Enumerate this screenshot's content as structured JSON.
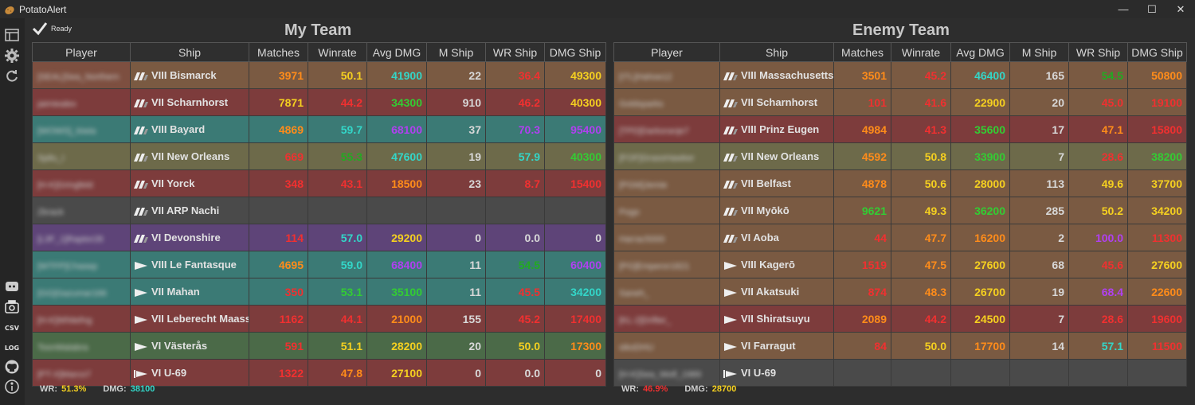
{
  "app": {
    "title": "PotatoAlert"
  },
  "status": {
    "text": "Ready"
  },
  "headers": [
    "Player",
    "Ship",
    "Matches",
    "Winrate",
    "Avg DMG",
    "M Ship",
    "WR Ship",
    "DMG Ship"
  ],
  "colors": {
    "red": "#f03030",
    "orange": "#ff8c1a",
    "yellow": "#f5d020",
    "green": "#33cc33",
    "dgreen": "#22aa22",
    "teal": "#33d6c8",
    "purple": "#b040f0",
    "white": "#d8d8d8",
    "row_brown": "#7a5a42",
    "row_red": "#7d3c3c",
    "row_teal": "#3b7a75",
    "row_olive": "#6d6a4a",
    "row_gray": "#4a4a4a",
    "row_purple": "#5e4478",
    "row_green": "#4b6a48"
  },
  "my_team": {
    "title": "My Team",
    "footer": {
      "wr_label": "WR:",
      "wr": "51.3%",
      "dmg_label": "DMG:",
      "dmg": "38100"
    },
    "rows": [
      {
        "player": "[SEAL]Sea_Northern",
        "ship": "VIII Bismarck",
        "icon": "bb",
        "bg": "#7a5a42",
        "pbg": "#7d4f40",
        "matches": "3971",
        "mc": "#ff8c1a",
        "winrate": "50.1",
        "wc": "#f5d020",
        "avg": "41900",
        "ac": "#33d6c8",
        "mship": "22",
        "wrship": "36.4",
        "wsc": "#f03030",
        "dmgship": "49300",
        "dsc": "#f5d020"
      },
      {
        "player": "jaimiealex",
        "ship": "VII Scharnhorst",
        "icon": "bb",
        "bg": "#7d3c3c",
        "pbg": "#7d3c3c",
        "matches": "7871",
        "mc": "#f5d020",
        "winrate": "44.2",
        "wc": "#f03030",
        "avg": "34300",
        "ac": "#33cc33",
        "mship": "910",
        "wrship": "46.2",
        "wsc": "#f03030",
        "dmgship": "40300",
        "dsc": "#f5d020"
      },
      {
        "player": "[WOWS]_kiwia",
        "ship": "VIII Bayard",
        "icon": "bb",
        "bg": "#3b7a75",
        "pbg": "#3b7a75",
        "matches": "4869",
        "mc": "#ff8c1a",
        "winrate": "59.7",
        "wc": "#33d6c8",
        "avg": "68100",
        "ac": "#b040f0",
        "mship": "37",
        "wrship": "70.3",
        "wsc": "#b040f0",
        "dmgship": "95400",
        "dsc": "#b040f0"
      },
      {
        "player": "Spilu_I",
        "ship": "VII New Orleans",
        "icon": "bb",
        "bg": "#6d6a4a",
        "pbg": "#6d6a4a",
        "matches": "669",
        "mc": "#f03030",
        "winrate": "55.3",
        "wc": "#22aa22",
        "avg": "47600",
        "ac": "#33d6c8",
        "mship": "19",
        "wrship": "57.9",
        "wsc": "#33d6c8",
        "dmgship": "40300",
        "dsc": "#33cc33"
      },
      {
        "player": "[H-K]Gringfeld",
        "ship": "VII Yorck",
        "icon": "bb",
        "bg": "#7d3c3c",
        "pbg": "#7d3c3c",
        "matches": "348",
        "mc": "#f03030",
        "winrate": "43.1",
        "wc": "#f03030",
        "avg": "18500",
        "ac": "#ff8c1a",
        "mship": "23",
        "wrship": "8.7",
        "wsc": "#f03030",
        "dmgship": "15400",
        "dsc": "#f03030"
      },
      {
        "player": "Zkrack",
        "ship": "VII ARP Nachi",
        "icon": "bb",
        "bg": "#4a4a4a",
        "pbg": "#4a4a4a",
        "matches": "",
        "mc": "#d8d8d8",
        "winrate": "",
        "wc": "#d8d8d8",
        "avg": "",
        "ac": "#d8d8d8",
        "mship": "",
        "wrship": "",
        "wsc": "#d8d8d8",
        "dmgship": "",
        "dsc": "#d8d8d8"
      },
      {
        "player": "[L3F_1]Raptor28",
        "ship": "VI Devonshire",
        "icon": "bb",
        "bg": "#5e4478",
        "pbg": "#5e4478",
        "matches": "114",
        "mc": "#f03030",
        "winrate": "57.0",
        "wc": "#33d6c8",
        "avg": "29200",
        "ac": "#f5d020",
        "mship": "0",
        "wrship": "0.0",
        "wsc": "#d8d8d8",
        "dmgship": "0",
        "dsc": "#d8d8d8"
      },
      {
        "player": "[WTFP]Chasep",
        "ship": "VIII Le Fantasque",
        "icon": "dd",
        "bg": "#3b7a75",
        "pbg": "#3b7a75",
        "matches": "4695",
        "mc": "#ff8c1a",
        "winrate": "59.0",
        "wc": "#33d6c8",
        "avg": "68400",
        "ac": "#b040f0",
        "mship": "11",
        "wrship": "54.5",
        "wsc": "#22aa22",
        "dmgship": "60400",
        "dsc": "#b040f0"
      },
      {
        "player": "[GG]Gazumar166",
        "ship": "VII Mahan",
        "icon": "dd",
        "bg": "#3b7a75",
        "pbg": "#3b7a75",
        "matches": "350",
        "mc": "#f03030",
        "winrate": "53.1",
        "wc": "#33cc33",
        "avg": "35100",
        "ac": "#33cc33",
        "mship": "11",
        "wrship": "45.5",
        "wsc": "#f03030",
        "dmgship": "34200",
        "dsc": "#33d6c8"
      },
      {
        "player": "[H-K]Whitefng",
        "ship": "VII Leberecht Maass",
        "icon": "dd",
        "bg": "#7d3c3c",
        "pbg": "#7d3c3c",
        "matches": "1162",
        "mc": "#f03030",
        "winrate": "44.1",
        "wc": "#f03030",
        "avg": "21000",
        "ac": "#ff8c1a",
        "mship": "155",
        "wrship": "45.2",
        "wsc": "#f03030",
        "dmgship": "17400",
        "dsc": "#f03030"
      },
      {
        "player": "ToonMalabra",
        "ship": "VI Västerås",
        "icon": "dd",
        "bg": "#4b6a48",
        "pbg": "#4b6a48",
        "matches": "591",
        "mc": "#f03030",
        "winrate": "51.1",
        "wc": "#f5d020",
        "avg": "28200",
        "ac": "#f5d020",
        "mship": "20",
        "wrship": "50.0",
        "wsc": "#f5d020",
        "dmgship": "17300",
        "dsc": "#ff8c1a"
      },
      {
        "player": "[PT-X]Marco7",
        "ship": "VI U-69",
        "icon": "ss",
        "bg": "#7d3c3c",
        "pbg": "#7d3c3c",
        "matches": "1322",
        "mc": "#f03030",
        "winrate": "47.8",
        "wc": "#ff8c1a",
        "avg": "27100",
        "ac": "#f5d020",
        "mship": "0",
        "wrship": "0.0",
        "wsc": "#d8d8d8",
        "dmgship": "0",
        "dsc": "#d8d8d8"
      }
    ]
  },
  "enemy_team": {
    "title": "Enemy Team",
    "footer": {
      "wr_label": "WR:",
      "wr": "46.9%",
      "dmg_label": "DMG:",
      "dmg": "28700"
    },
    "rows": [
      {
        "player": "[ITL]Hahoe12",
        "ship": "VIII Massachusetts",
        "icon": "bb",
        "bg": "#7a5a42",
        "pbg": "#7a5a42",
        "matches": "3501",
        "mc": "#ff8c1a",
        "winrate": "45.2",
        "wc": "#f03030",
        "avg": "46400",
        "ac": "#33d6c8",
        "mship": "165",
        "wrship": "54.5",
        "wsc": "#22aa22",
        "dmgship": "50800",
        "dsc": "#ff8c1a"
      },
      {
        "player": "Goldsparks",
        "ship": "VII Scharnhorst",
        "icon": "bb",
        "bg": "#7a5a42",
        "pbg": "#7a5a42",
        "matches": "101",
        "mc": "#f03030",
        "winrate": "41.6",
        "wc": "#f03030",
        "avg": "22900",
        "ac": "#f5d020",
        "mship": "20",
        "wrship": "45.0",
        "wsc": "#f03030",
        "dmgship": "19100",
        "dsc": "#f03030"
      },
      {
        "player": "[TPD]Darkoranje7",
        "ship": "VIII Prinz Eugen",
        "icon": "bb",
        "bg": "#7d3c3c",
        "pbg": "#7d3c3c",
        "matches": "4984",
        "mc": "#ff8c1a",
        "winrate": "41.3",
        "wc": "#f03030",
        "avg": "35600",
        "ac": "#33cc33",
        "mship": "17",
        "wrship": "47.1",
        "wsc": "#ff8c1a",
        "dmgship": "15800",
        "dsc": "#f03030"
      },
      {
        "player": "[FOF]GrassHawker",
        "ship": "VII New Orleans",
        "icon": "bb",
        "bg": "#6d6a4a",
        "pbg": "#6d6a4a",
        "matches": "4592",
        "mc": "#ff8c1a",
        "winrate": "50.8",
        "wc": "#f5d020",
        "avg": "33900",
        "ac": "#33cc33",
        "mship": "7",
        "wrship": "28.6",
        "wsc": "#f03030",
        "dmgship": "38200",
        "dsc": "#33cc33"
      },
      {
        "player": "[PGM]Jemie",
        "ship": "VII Belfast",
        "icon": "bb",
        "bg": "#7a5a42",
        "pbg": "#7a5a42",
        "matches": "4878",
        "mc": "#ff8c1a",
        "winrate": "50.6",
        "wc": "#f5d020",
        "avg": "28000",
        "ac": "#f5d020",
        "mship": "113",
        "wrship": "49.6",
        "wsc": "#f5d020",
        "dmgship": "37700",
        "dsc": "#f5d020"
      },
      {
        "player": "Pogo",
        "ship": "VII Myōkō",
        "icon": "bb",
        "bg": "#7a5a42",
        "pbg": "#7a5a42",
        "matches": "9621",
        "mc": "#33cc33",
        "winrate": "49.3",
        "wc": "#f5d020",
        "avg": "36200",
        "ac": "#33cc33",
        "mship": "285",
        "wrship": "50.2",
        "wsc": "#f5d020",
        "dmgship": "34200",
        "dsc": "#f5d020"
      },
      {
        "player": "Harrac5000",
        "ship": "VI Aoba",
        "icon": "bb",
        "bg": "#7a5a42",
        "pbg": "#7a5a42",
        "matches": "44",
        "mc": "#f03030",
        "winrate": "47.7",
        "wc": "#ff8c1a",
        "avg": "16200",
        "ac": "#ff8c1a",
        "mship": "2",
        "wrship": "100.0",
        "wsc": "#b040f0",
        "dmgship": "11300",
        "dsc": "#f03030"
      },
      {
        "player": "[PG]Emperor1821",
        "ship": "VIII Kagerō",
        "icon": "dd",
        "bg": "#7a5a42",
        "pbg": "#7a5a42",
        "matches": "1519",
        "mc": "#f03030",
        "winrate": "47.5",
        "wc": "#ff8c1a",
        "avg": "27600",
        "ac": "#f5d020",
        "mship": "68",
        "wrship": "45.6",
        "wsc": "#f03030",
        "dmgship": "27600",
        "dsc": "#f5d020"
      },
      {
        "player": "Saneh_",
        "ship": "VII Akatsuki",
        "icon": "dd",
        "bg": "#7a5a42",
        "pbg": "#7a5a42",
        "matches": "874",
        "mc": "#f03030",
        "winrate": "48.3",
        "wc": "#ff8c1a",
        "avg": "26700",
        "ac": "#f5d020",
        "mship": "19",
        "wrship": "68.4",
        "wsc": "#b040f0",
        "dmgship": "22600",
        "dsc": "#ff8c1a"
      },
      {
        "player": "[KL-2]Drifter_",
        "ship": "VII Shiratsuyu",
        "icon": "dd",
        "bg": "#7d3c3c",
        "pbg": "#7d3c3c",
        "matches": "2089",
        "mc": "#ff8c1a",
        "winrate": "44.2",
        "wc": "#f03030",
        "avg": "24500",
        "ac": "#f5d020",
        "mship": "7",
        "wrship": "28.6",
        "wsc": "#f03030",
        "dmgship": "19600",
        "dsc": "#f03030"
      },
      {
        "player": "sikoDHU",
        "ship": "VI Farragut",
        "icon": "dd",
        "bg": "#7a5a42",
        "pbg": "#7a5a42",
        "matches": "84",
        "mc": "#f03030",
        "winrate": "50.0",
        "wc": "#f5d020",
        "avg": "17700",
        "ac": "#ff8c1a",
        "mship": "14",
        "wrship": "57.1",
        "wsc": "#33d6c8",
        "dmgship": "11500",
        "dsc": "#f03030"
      },
      {
        "player": "[H-K]Sea_Wolf_1989",
        "ship": "VI U-69",
        "icon": "ss",
        "bg": "#4a4a4a",
        "pbg": "#4a4a4a",
        "matches": "",
        "mc": "#d8d8d8",
        "winrate": "",
        "wc": "#d8d8d8",
        "avg": "",
        "ac": "#d8d8d8",
        "mship": "",
        "wrship": "",
        "wsc": "#d8d8d8",
        "dmgship": "",
        "dsc": "#d8d8d8"
      }
    ]
  }
}
